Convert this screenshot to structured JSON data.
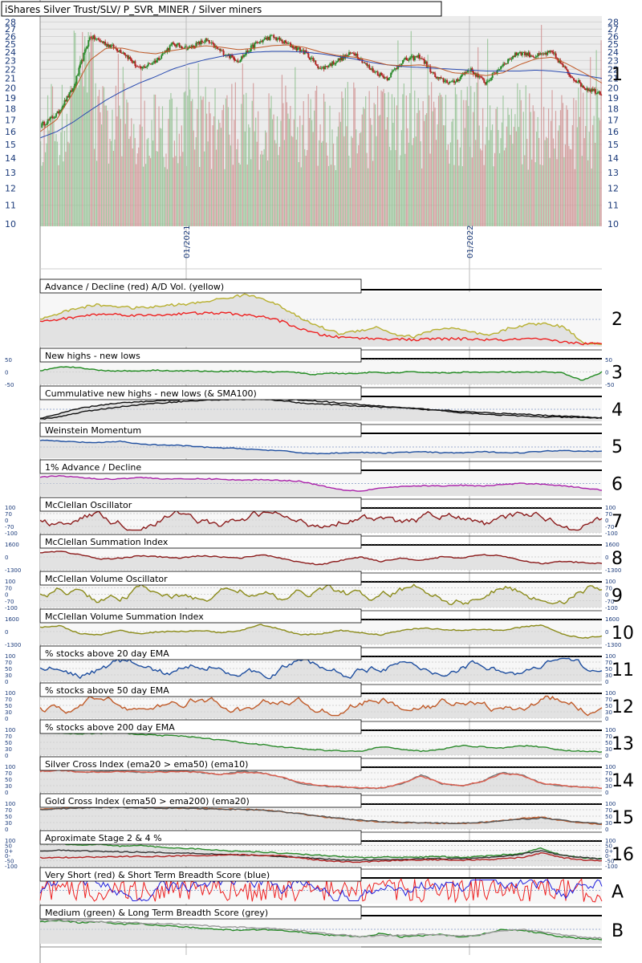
{
  "chart_data": {
    "type": "line",
    "title": "iShares Silver Trust/SLV/ P_SVR_MINER / Silver miners",
    "price_axis": {
      "ticks": [
        10,
        11,
        12,
        13,
        14,
        15,
        16,
        17,
        18,
        19,
        20,
        21,
        22,
        23,
        24,
        25,
        26,
        27,
        28
      ],
      "ylim": [
        10,
        28.5
      ]
    },
    "date_labels": [
      "01/2021",
      "01/2022"
    ],
    "price_series": {
      "close_anchors": [
        16.5,
        17.5,
        20,
        26,
        25,
        24,
        22,
        23,
        25,
        24.5,
        25.5,
        24,
        23,
        25,
        26,
        25,
        24,
        22,
        23,
        24,
        22,
        21,
        23,
        23.5,
        21,
        20.5,
        22,
        20.5,
        22.5,
        24,
        23.5,
        24,
        21.5,
        20,
        19.5
      ],
      "ema_slow_anchors": [
        15.5,
        16,
        16.8,
        17.8,
        18.8,
        19.7,
        20.5,
        21.2,
        22,
        22.6,
        23.1,
        23.5,
        23.8,
        24,
        24.1,
        24.1,
        24,
        23.8,
        23.5,
        23.2,
        22.8,
        22.5,
        22.3,
        22.2,
        22.1,
        22,
        21.9,
        21.8,
        21.8,
        21.8,
        21.9,
        21.8,
        21.6,
        21.3,
        21
      ],
      "ema_fast_anchors": [
        16,
        17,
        19.5,
        23,
        24.5,
        24.5,
        24,
        23.8,
        24.2,
        24.5,
        24.8,
        24.6,
        24.3,
        24.5,
        24.8,
        24.9,
        24.6,
        24,
        23.6,
        23.4,
        23,
        22.5,
        22.4,
        22.5,
        22.2,
        21.6,
        21.5,
        21.3,
        21.6,
        22.5,
        23.2,
        23.4,
        22.5,
        21.5,
        20.5
      ],
      "colors": {
        "up": "#2e8b2e",
        "down": "#b22222",
        "ema_fast": "#c05a28",
        "ema_slow": "#2a4bb0",
        "vol_up": "#90c090",
        "vol_down": "#d09090"
      }
    },
    "panels": [
      {
        "id": "2",
        "title": "Advance / Decline (red) A/D Vol. (yellow)",
        "label": "2",
        "series": [
          {
            "color": "#b8b030",
            "anchors": [
              0.5,
              0.62,
              0.72,
              0.78,
              0.76,
              0.72,
              0.74,
              0.78,
              0.8,
              0.86,
              0.92,
              0.98,
              0.9,
              0.72,
              0.5,
              0.35,
              0.22,
              0.28,
              0.35,
              0.2,
              0.16,
              0.3,
              0.33,
              0.25,
              0.18,
              0.32,
              0.4,
              0.42,
              0.35,
              0.05,
              0.02
            ]
          },
          {
            "color": "#ee2020",
            "anchors": [
              0.45,
              0.5,
              0.55,
              0.6,
              0.6,
              0.58,
              0.58,
              0.6,
              0.62,
              0.62,
              0.62,
              0.58,
              0.55,
              0.45,
              0.3,
              0.2,
              0.15,
              0.14,
              0.12,
              0.12,
              0.1,
              0.12,
              0.12,
              0.12,
              0.1,
              0.1,
              0.12,
              0.1,
              0.06,
              0.03,
              0.02
            ]
          }
        ]
      },
      {
        "id": "3",
        "title": "New highs - new lows",
        "label": "3",
        "ticks": [
          "50",
          "0",
          "-50"
        ],
        "series": [
          {
            "color": "#1f8a1f",
            "anchors": [
              0.55,
              0.75,
              0.7,
              0.58,
              0.55,
              0.55,
              0.58,
              0.55,
              0.55,
              0.52,
              0.55,
              0.52,
              0.5,
              0.5,
              0.38,
              0.45,
              0.42,
              0.48,
              0.45,
              0.5,
              0.48,
              0.45,
              0.5,
              0.48,
              0.5,
              0.48,
              0.5,
              0.45,
              0.1,
              0.5
            ]
          }
        ]
      },
      {
        "id": "4",
        "title": "Cummulative new highs - new lows (& SMA100)",
        "label": "4",
        "series": [
          {
            "color": "#111111",
            "anchors": [
              0.05,
              0.3,
              0.55,
              0.7,
              0.8,
              0.86,
              0.92,
              0.96,
              1,
              1,
              1,
              0.98,
              0.92,
              0.8,
              0.75,
              0.7,
              0.65,
              0.6,
              0.56,
              0.5,
              0.44,
              0.34,
              0.28,
              0.22,
              0.18,
              0.14,
              0.12,
              0.1,
              0.08
            ]
          },
          {
            "color": "#111111",
            "anchors": [
              0.02,
              0.15,
              0.35,
              0.5,
              0.62,
              0.72,
              0.8,
              0.87,
              0.92,
              0.96,
              0.98,
              0.99,
              0.98,
              0.94,
              0.88,
              0.8,
              0.72,
              0.65,
              0.58,
              0.52,
              0.46,
              0.4,
              0.34,
              0.3,
              0.26,
              0.22,
              0.18,
              0.14,
              0.1
            ]
          }
        ]
      },
      {
        "id": "5",
        "title": "Weinstein Momentum",
        "label": "5",
        "series": [
          {
            "color": "#1f4fa0",
            "anchors": [
              0.85,
              0.8,
              0.75,
              0.72,
              0.8,
              0.65,
              0.6,
              0.58,
              0.5,
              0.45,
              0.42,
              0.35,
              0.3,
              0.2,
              0.15,
              0.2,
              0.22,
              0.18,
              0.22,
              0.25,
              0.2,
              0.2,
              0.25,
              0.22,
              0.2,
              0.28,
              0.32,
              0.28,
              0.3
            ]
          }
        ]
      },
      {
        "id": "6",
        "title": "1% Advance / Decline",
        "label": "6",
        "series": [
          {
            "color": "#aa22aa",
            "anchors": [
              0.8,
              0.85,
              0.78,
              0.7,
              0.72,
              0.78,
              0.72,
              0.7,
              0.72,
              0.7,
              0.65,
              0.68,
              0.65,
              0.6,
              0.4,
              0.22,
              0.15,
              0.3,
              0.35,
              0.4,
              0.38,
              0.42,
              0.38,
              0.45,
              0.5,
              0.48,
              0.4,
              0.3,
              0.2
            ]
          }
        ]
      },
      {
        "id": "7",
        "title": "McClellan Oscillator",
        "label": "7",
        "ticks": [
          "100",
          "70",
          "0",
          "-70",
          "-100"
        ],
        "tick_color": "#1a3a7a",
        "series": [
          {
            "color": "#8b1a1a",
            "osc": true
          }
        ]
      },
      {
        "id": "8",
        "title": "McClellan Summation Index",
        "label": "8",
        "ticks": [
          "1600",
          "0",
          "-1300"
        ],
        "series": [
          {
            "color": "#8b1a1a",
            "anchors": [
              0.7,
              0.75,
              0.6,
              0.4,
              0.45,
              0.55,
              0.5,
              0.45,
              0.55,
              0.5,
              0.45,
              0.6,
              0.45,
              0.25,
              0.15,
              0.35,
              0.5,
              0.3,
              0.45,
              0.35,
              0.5,
              0.45,
              0.6,
              0.55,
              0.35,
              0.2,
              0.3,
              0.25,
              0.2
            ]
          }
        ]
      },
      {
        "id": "9",
        "title": "McClellan Volume Oscillator",
        "label": "9",
        "ticks": [
          "100",
          "70",
          "0",
          "-70",
          "-100"
        ],
        "series": [
          {
            "color": "#8b8b1a",
            "osc": true
          }
        ]
      },
      {
        "id": "10",
        "title": "McClellan Volume Summation Index",
        "label": "10",
        "ticks": [
          "1600",
          "0",
          "-1300"
        ],
        "series": [
          {
            "color": "#8b8b1a",
            "anchors": [
              0.7,
              0.75,
              0.4,
              0.35,
              0.55,
              0.4,
              0.5,
              0.5,
              0.55,
              0.45,
              0.55,
              0.8,
              0.6,
              0.35,
              0.4,
              0.55,
              0.45,
              0.35,
              0.55,
              0.65,
              0.6,
              0.55,
              0.6,
              0.55,
              0.7,
              0.8,
              0.4,
              0.2,
              0.3
            ]
          }
        ]
      },
      {
        "id": "11",
        "title": "% stocks above 20 day EMA",
        "label": "11",
        "ticks": [
          "100",
          "70",
          "50",
          "30",
          "0"
        ],
        "series": [
          {
            "color": "#1f4fa0",
            "osc": true
          }
        ]
      },
      {
        "id": "12",
        "title": "% stocks above 50 day EMA",
        "label": "12",
        "ticks": [
          "100",
          "70",
          "50",
          "30",
          "0"
        ],
        "series": [
          {
            "color": "#c05a28",
            "osc": true
          }
        ]
      },
      {
        "id": "13",
        "title": "% stocks above 200 day EMA",
        "label": "13",
        "ticks": [
          "100",
          "70",
          "50",
          "30",
          "0"
        ],
        "series": [
          {
            "color": "#2a8a2a",
            "anchors": [
              0.95,
              0.92,
              0.88,
              0.9,
              0.92,
              0.85,
              0.8,
              0.78,
              0.7,
              0.6,
              0.5,
              0.4,
              0.3,
              0.22,
              0.15,
              0.12,
              0.1,
              0.3,
              0.2,
              0.1,
              0.2,
              0.35,
              0.3,
              0.25,
              0.35,
              0.3,
              0.15,
              0.1,
              0.08
            ]
          }
        ]
      },
      {
        "id": "14",
        "title": "Silver Cross Index (ema20 > ema50) (ema10)",
        "label": "14",
        "ticks": [
          "100",
          "70",
          "50",
          "30",
          "0"
        ],
        "series": [
          {
            "color": "#777777",
            "anchors": [
              0.9,
              0.95,
              0.8,
              0.85,
              0.9,
              0.8,
              0.85,
              0.88,
              0.8,
              0.7,
              0.85,
              0.8,
              0.6,
              0.3,
              0.2,
              0.15,
              0.1,
              0.1,
              0.3,
              0.7,
              0.3,
              0.2,
              0.4,
              0.8,
              0.7,
              0.3,
              0.2,
              0.15,
              0.1
            ]
          },
          {
            "color": "#e06050",
            "anchors": [
              0.85,
              0.9,
              0.82,
              0.82,
              0.85,
              0.82,
              0.82,
              0.85,
              0.8,
              0.72,
              0.8,
              0.78,
              0.62,
              0.35,
              0.22,
              0.16,
              0.12,
              0.12,
              0.3,
              0.65,
              0.32,
              0.22,
              0.38,
              0.75,
              0.68,
              0.32,
              0.22,
              0.15,
              0.1
            ]
          }
        ]
      },
      {
        "id": "15",
        "title": "Gold Cross Index (ema50 > ema200) (ema20)",
        "label": "15",
        "ticks": [
          "100",
          "70",
          "50",
          "30",
          "0"
        ],
        "series": [
          {
            "color": "#c05a28",
            "anchors": [
              0.8,
              0.85,
              0.88,
              0.9,
              0.9,
              0.88,
              0.86,
              0.86,
              0.84,
              0.82,
              0.8,
              0.78,
              0.72,
              0.6,
              0.48,
              0.38,
              0.3,
              0.24,
              0.22,
              0.2,
              0.18,
              0.18,
              0.22,
              0.3,
              0.4,
              0.45,
              0.3,
              0.2,
              0.15
            ]
          },
          {
            "color": "#555555",
            "anchors": [
              0.78,
              0.83,
              0.86,
              0.88,
              0.88,
              0.87,
              0.85,
              0.85,
              0.83,
              0.81,
              0.79,
              0.77,
              0.7,
              0.6,
              0.5,
              0.4,
              0.32,
              0.26,
              0.23,
              0.21,
              0.19,
              0.19,
              0.22,
              0.28,
              0.36,
              0.42,
              0.32,
              0.22,
              0.16
            ]
          }
        ]
      },
      {
        "id": "16",
        "title": "Aproximate Stage 2 & 4 %",
        "label": "16",
        "ticks": [
          "100",
          "50",
          "0+",
          "0-",
          "-50",
          "-100"
        ],
        "series": [
          {
            "color": "#2a8a2a",
            "anchors": [
              0.9,
              0.92,
              0.85,
              0.9,
              0.8,
              0.85,
              0.75,
              0.72,
              0.68,
              0.62,
              0.58,
              0.55,
              0.5,
              0.45,
              0.4,
              0.35,
              0.3,
              0.32,
              0.3,
              0.32,
              0.35,
              0.3,
              0.35,
              0.42,
              0.48,
              0.72,
              0.4,
              0.3,
              0.25
            ]
          },
          {
            "color": "#333333",
            "anchors": [
              0.6,
              0.62,
              0.6,
              0.58,
              0.55,
              0.55,
              0.52,
              0.5,
              0.48,
              0.45,
              0.42,
              0.4,
              0.35,
              0.3,
              0.25,
              0.2,
              0.18,
              0.2,
              0.22,
              0.24,
              0.25,
              0.25,
              0.28,
              0.35,
              0.45,
              0.6,
              0.4,
              0.3,
              0.25
            ]
          },
          {
            "color": "#b22222",
            "anchors": [
              0.3,
              0.3,
              0.32,
              0.32,
              0.35,
              0.35,
              0.35,
              0.38,
              0.38,
              0.4,
              0.42,
              0.4,
              0.38,
              0.28,
              0.18,
              0.12,
              0.1,
              0.15,
              0.18,
              0.2,
              0.2,
              0.18,
              0.2,
              0.25,
              0.3,
              0.5,
              0.3,
              0.2,
              0.15
            ]
          }
        ]
      },
      {
        "id": "A",
        "title": "Very Short (red) & Short Term Breadth Score (blue)",
        "label": "A",
        "series": [
          {
            "color": "#ee2020",
            "noisy": true
          },
          {
            "color": "#1f1fdd",
            "noisy": true
          }
        ]
      },
      {
        "id": "B",
        "title": "Medium (green) & Long Term Breadth Score (grey)",
        "label": "B",
        "series": [
          {
            "color": "#2a8a2a",
            "anchors": [
              0.8,
              0.85,
              0.75,
              0.8,
              0.7,
              0.72,
              0.65,
              0.6,
              0.55,
              0.5,
              0.45,
              0.5,
              0.45,
              0.4,
              0.3,
              0.25,
              0.2,
              0.35,
              0.2,
              0.25,
              0.3,
              0.2,
              0.3,
              0.5,
              0.45,
              0.35,
              0.2,
              0.15,
              0.1
            ]
          },
          {
            "color": "#999999",
            "anchors": [
              0.85,
              0.85,
              0.82,
              0.8,
              0.78,
              0.75,
              0.72,
              0.7,
              0.65,
              0.6,
              0.58,
              0.55,
              0.5,
              0.45,
              0.35,
              0.28,
              0.22,
              0.25,
              0.28,
              0.3,
              0.28,
              0.25,
              0.3,
              0.45,
              0.5,
              0.4,
              0.3,
              0.2,
              0.15
            ]
          }
        ]
      }
    ]
  }
}
